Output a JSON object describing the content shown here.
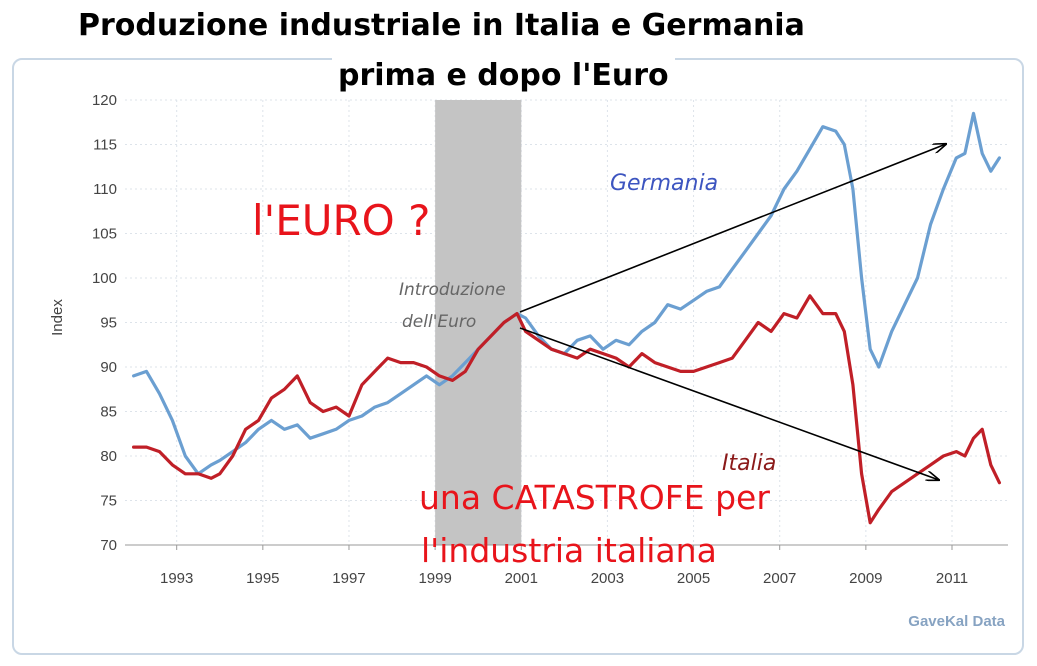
{
  "chart_data": {
    "type": "line",
    "title": "Produzione industriale in Italia e Germania",
    "subtitle": "prima e dopo l'Euro",
    "ylabel": "Index",
    "xlabel": "",
    "xlim": [
      1991.8,
      2012.3
    ],
    "ylim": [
      70,
      120
    ],
    "yticks": [
      70,
      75,
      80,
      85,
      90,
      95,
      100,
      105,
      110,
      115,
      120
    ],
    "xticks": [
      1993,
      1995,
      1997,
      1999,
      2001,
      2003,
      2005,
      2007,
      2009,
      2011
    ],
    "grid": true,
    "shaded_region": [
      1999.0,
      2001.0
    ],
    "source": "GaveKal Data",
    "series": [
      {
        "name": "Germania",
        "color": "#6b9fd1",
        "x": [
          1992.0,
          1992.3,
          1992.6,
          1992.9,
          1993.2,
          1993.5,
          1993.8,
          1994.0,
          1994.3,
          1994.6,
          1994.9,
          1995.2,
          1995.5,
          1995.8,
          1996.1,
          1996.4,
          1996.7,
          1997.0,
          1997.3,
          1997.6,
          1997.9,
          1998.2,
          1998.5,
          1998.8,
          1999.1,
          1999.4,
          1999.7,
          2000.0,
          2000.3,
          2000.6,
          2000.9,
          2001.1,
          2001.4,
          2001.7,
          2002.0,
          2002.3,
          2002.6,
          2002.9,
          2003.2,
          2003.5,
          2003.8,
          2004.1,
          2004.4,
          2004.7,
          2005.0,
          2005.3,
          2005.6,
          2005.9,
          2006.2,
          2006.5,
          2006.8,
          2007.1,
          2007.4,
          2007.7,
          2008.0,
          2008.3,
          2008.5,
          2008.7,
          2008.9,
          2009.1,
          2009.3,
          2009.6,
          2009.9,
          2010.2,
          2010.5,
          2010.8,
          2011.1,
          2011.3,
          2011.5,
          2011.7,
          2011.9,
          2012.1
        ],
        "values": [
          89,
          89.5,
          87,
          84,
          80,
          78,
          79,
          79.5,
          80.5,
          81.5,
          83,
          84,
          83,
          83.5,
          82,
          82.5,
          83,
          84,
          84.5,
          85.5,
          86,
          87,
          88,
          89,
          88,
          89,
          90.5,
          92,
          93.5,
          95,
          96,
          95.5,
          93.5,
          92,
          91.5,
          93,
          93.5,
          92,
          93,
          92.5,
          94,
          95,
          97,
          96.5,
          97.5,
          98.5,
          99,
          101,
          103,
          105,
          107,
          110,
          112,
          114.5,
          117,
          116.5,
          115,
          110,
          100,
          92,
          90,
          94,
          97,
          100,
          106,
          110,
          113.5,
          114,
          118.5,
          114,
          112,
          113.5
        ]
      },
      {
        "name": "Italia",
        "color": "#c01f27",
        "x": [
          1992.0,
          1992.3,
          1992.6,
          1992.9,
          1993.2,
          1993.5,
          1993.8,
          1994.0,
          1994.3,
          1994.6,
          1994.9,
          1995.2,
          1995.5,
          1995.8,
          1996.1,
          1996.4,
          1996.7,
          1997.0,
          1997.3,
          1997.6,
          1997.9,
          1998.2,
          1998.5,
          1998.8,
          1999.1,
          1999.4,
          1999.7,
          2000.0,
          2000.3,
          2000.6,
          2000.9,
          2001.1,
          2001.4,
          2001.7,
          2002.0,
          2002.3,
          2002.6,
          2002.9,
          2003.2,
          2003.5,
          2003.8,
          2004.1,
          2004.4,
          2004.7,
          2005.0,
          2005.3,
          2005.6,
          2005.9,
          2006.2,
          2006.5,
          2006.8,
          2007.1,
          2007.4,
          2007.7,
          2008.0,
          2008.3,
          2008.5,
          2008.7,
          2008.9,
          2009.1,
          2009.3,
          2009.6,
          2009.9,
          2010.2,
          2010.5,
          2010.8,
          2011.1,
          2011.3,
          2011.5,
          2011.7,
          2011.9,
          2012.1
        ],
        "values": [
          81,
          81,
          80.5,
          79,
          78,
          78,
          77.5,
          78,
          80,
          83,
          84,
          86.5,
          87.5,
          89,
          86,
          85,
          85.5,
          84.5,
          88,
          89.5,
          91,
          90.5,
          90.5,
          90,
          89,
          88.5,
          89.5,
          92,
          93.5,
          95,
          96,
          94,
          93,
          92,
          91.5,
          91,
          92,
          91.5,
          91,
          90,
          91.5,
          90.5,
          90,
          89.5,
          89.5,
          90,
          90.5,
          91,
          93,
          95,
          94,
          96,
          95.5,
          98,
          96,
          96,
          94,
          88,
          78,
          72.5,
          74,
          76,
          77,
          78,
          79,
          80,
          80.5,
          80,
          82,
          83,
          79,
          77
        ]
      }
    ],
    "annotations": {
      "euro_question": "l'EURO ?",
      "intro_line1": "Introduzione",
      "intro_line2": "dell'Euro",
      "germania_label": "Germania",
      "italia_label": "Italia",
      "catastrofe_line1": "una CATASTROFE per",
      "catastrofe_line2": "l'industria italiana"
    }
  }
}
